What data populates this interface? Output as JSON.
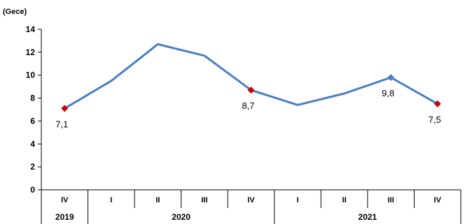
{
  "chart_data": {
    "type": "line",
    "unit_label": "(Gece)",
    "ylim": [
      0,
      14
    ],
    "yticks": [
      0,
      2,
      4,
      6,
      8,
      10,
      12,
      14
    ],
    "categories": [
      "IV",
      "I",
      "II",
      "III",
      "IV",
      "I",
      "II",
      "III",
      "IV"
    ],
    "years": [
      {
        "label": "2019",
        "span": [
          0,
          0
        ]
      },
      {
        "label": "2020",
        "span": [
          1,
          4
        ]
      },
      {
        "label": "2021",
        "span": [
          5,
          8
        ]
      }
    ],
    "series": [
      {
        "values": [
          7.1,
          9.5,
          12.7,
          11.7,
          8.7,
          7.4,
          8.4,
          9.8,
          7.5
        ],
        "color": "#4a7ebf"
      }
    ],
    "markers": [
      {
        "index": 0,
        "shape": "diamond",
        "color": "#c0000b"
      },
      {
        "index": 4,
        "shape": "diamond",
        "color": "#c0000b"
      },
      {
        "index": 7,
        "shape": "diamond",
        "color": "#4a7ebf"
      },
      {
        "index": 8,
        "shape": "diamond",
        "color": "#c0000b"
      }
    ],
    "data_labels": [
      {
        "index": 0,
        "text": "7,1",
        "position": "below"
      },
      {
        "index": 4,
        "text": "8,7",
        "position": "below"
      },
      {
        "index": 7,
        "text": "9,8",
        "position": "below"
      },
      {
        "index": 8,
        "text": "7,5",
        "position": "below"
      }
    ],
    "grid": false,
    "legend": "none"
  }
}
